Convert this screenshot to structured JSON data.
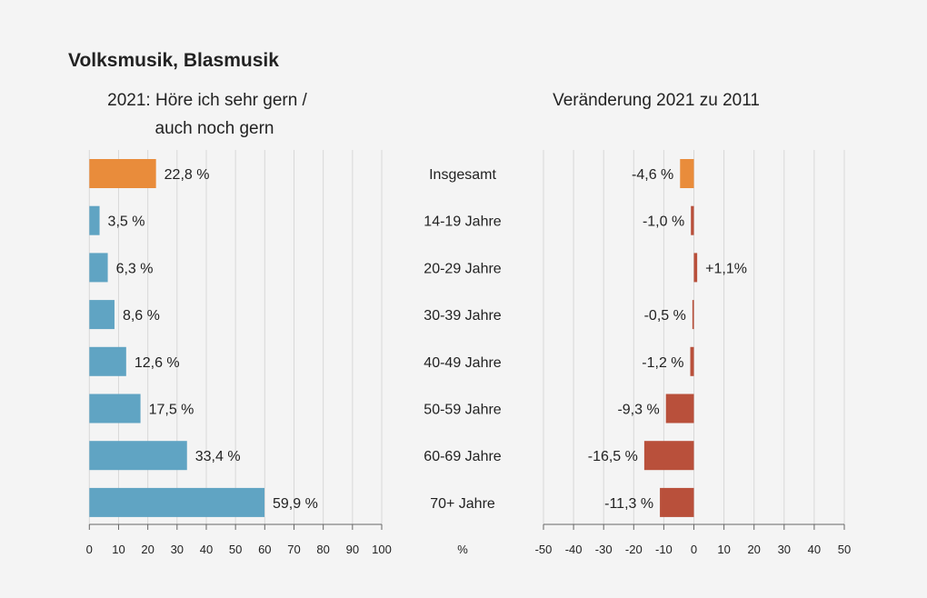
{
  "title": "Volksmusik, Blasmusik",
  "colors": {
    "highlight": "#e98c3b",
    "left_bars": "#60a4c3",
    "right_bars": "#b9503b",
    "grid": "#d8d8d8",
    "background": "#f4f4f4"
  },
  "chart_data": [
    {
      "type": "bar",
      "orientation": "horizontal",
      "title_lines": [
        "2021: Höre ich sehr gern /",
        "auch noch gern"
      ],
      "categories": [
        "Insgesamt",
        "14-19 Jahre",
        "20-29 Jahre",
        "30-39 Jahre",
        "40-49 Jahre",
        "50-59 Jahre",
        "60-69 Jahre",
        "70+ Jahre"
      ],
      "values": [
        22.8,
        3.5,
        6.3,
        8.6,
        12.6,
        17.5,
        33.4,
        59.9
      ],
      "data_labels": [
        "22,8 %",
        "3,5 %",
        "6,3 %",
        "8,6 %",
        "12,6 %",
        "17,5 %",
        "33,4 %",
        "59,9 %"
      ],
      "xlim": [
        0,
        100
      ],
      "xticks": [
        "0",
        "10",
        "20",
        "30",
        "40",
        "50",
        "60",
        "70",
        "80",
        "90",
        "100"
      ],
      "grid": true
    },
    {
      "type": "bar",
      "orientation": "horizontal",
      "title_lines": [
        "Veränderung 2021 zu 2011"
      ],
      "categories": [
        "Insgesamt",
        "14-19 Jahre",
        "20-29 Jahre",
        "30-39 Jahre",
        "40-49 Jahre",
        "50-59 Jahre",
        "60-69 Jahre",
        "70+ Jahre"
      ],
      "values": [
        -4.6,
        -1.0,
        1.1,
        -0.5,
        -1.2,
        -9.3,
        -16.5,
        -11.3
      ],
      "data_labels": [
        "-4,6 %",
        "-1,0 %",
        "+1,1%",
        "-0,5 %",
        "-1,2 %",
        "-9,3 %",
        "-16,5 %",
        "-11,3 %"
      ],
      "xlim": [
        -50,
        50
      ],
      "xticks": [
        "-50",
        "-40",
        "-30",
        "-20",
        "-10",
        "0",
        "10",
        "20",
        "30",
        "40",
        "50"
      ],
      "grid": true
    }
  ],
  "axis_unit": "%"
}
